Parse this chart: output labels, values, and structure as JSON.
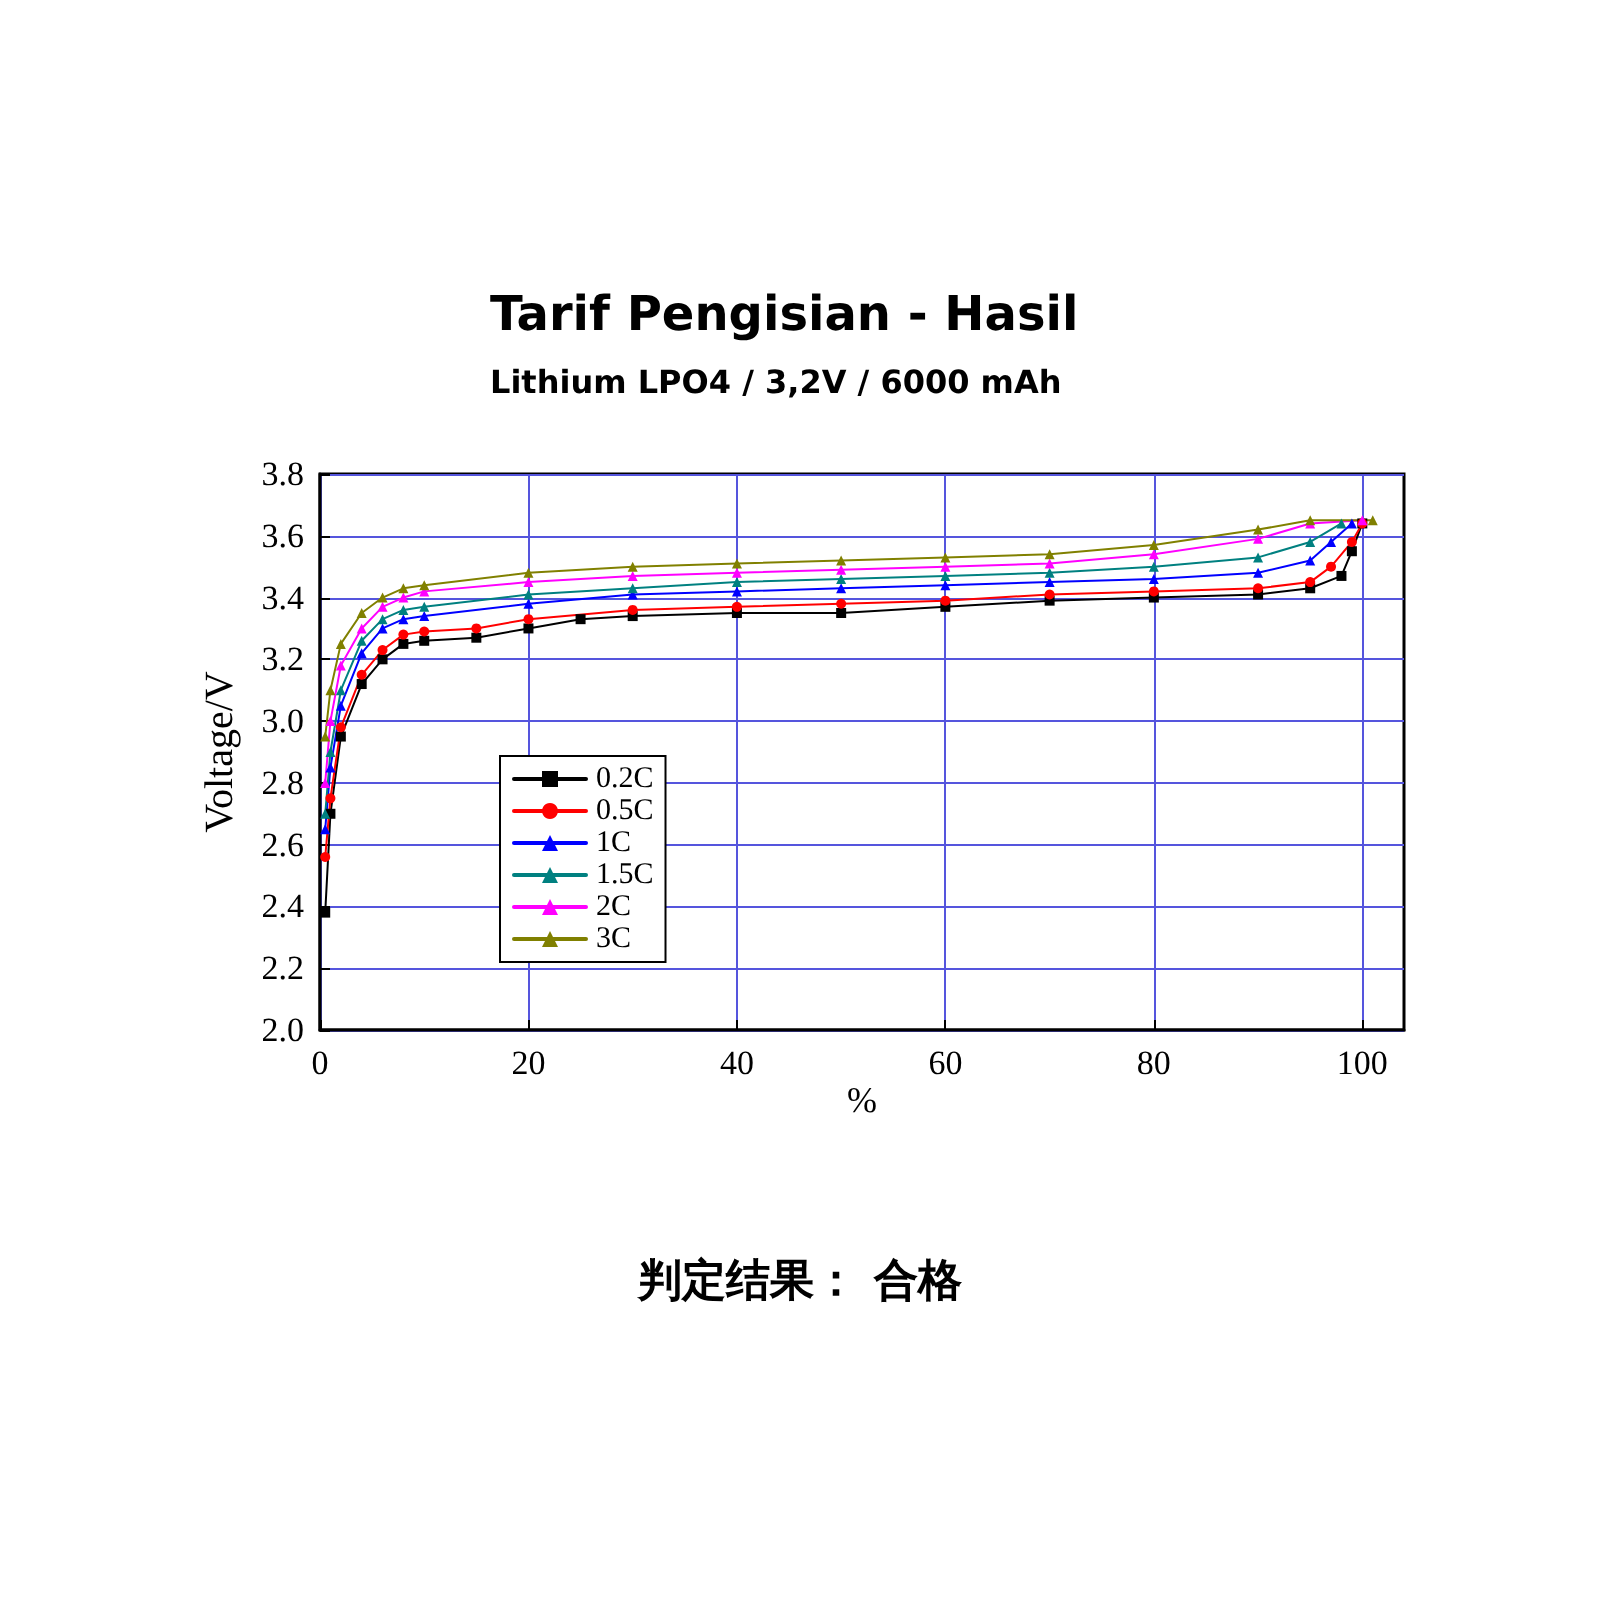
{
  "chart_data": {
    "type": "line",
    "title": "Tarif Pengisian - Hasil",
    "subtitle": "Lithium LPO4 / 3,2V / 6000 mAh",
    "xlabel": "%",
    "ylabel": "Voltage/V",
    "annotations": [
      "判定结果： 合格"
    ],
    "xlim": [
      0,
      104
    ],
    "xticks": [
      0,
      20,
      40,
      60,
      80,
      100
    ],
    "ylim": [
      2.0,
      3.8
    ],
    "yticks": [
      {
        "value": 2.0,
        "label": "2.0"
      },
      2.2,
      2.4,
      2.6,
      2.8,
      {
        "value": 3.0,
        "label": "3.0"
      },
      3.2,
      3.4,
      3.6,
      3.8
    ],
    "grid": true,
    "legend": "left",
    "line_style": "solid",
    "series": [
      {
        "name": "0.2C",
        "color": "#000000",
        "marker": "square",
        "x": [
          0.5,
          1,
          2,
          4,
          6,
          8,
          10,
          15,
          20,
          25,
          30,
          40,
          50,
          60,
          70,
          80,
          90,
          95,
          98,
          99,
          100
        ],
        "values": [
          2.38,
          2.7,
          2.95,
          3.12,
          3.2,
          3.25,
          3.26,
          3.27,
          3.3,
          3.33,
          3.34,
          3.35,
          3.35,
          3.37,
          3.39,
          3.4,
          3.41,
          3.43,
          3.47,
          3.55,
          3.64
        ]
      },
      {
        "name": "0.5C",
        "color": "#ff0000",
        "marker": "circle",
        "x": [
          0.5,
          1,
          2,
          4,
          6,
          8,
          10,
          15,
          20,
          30,
          40,
          50,
          60,
          70,
          80,
          90,
          95,
          97,
          99,
          100
        ],
        "values": [
          2.56,
          2.75,
          2.98,
          3.15,
          3.23,
          3.28,
          3.29,
          3.3,
          3.33,
          3.36,
          3.37,
          3.38,
          3.39,
          3.41,
          3.42,
          3.43,
          3.45,
          3.5,
          3.58,
          3.64
        ]
      },
      {
        "name": "1C",
        "color": "#0000ff",
        "marker": "triangle",
        "x": [
          0.5,
          1,
          2,
          4,
          6,
          8,
          10,
          20,
          30,
          40,
          50,
          60,
          70,
          80,
          90,
          95,
          97,
          99
        ],
        "values": [
          2.65,
          2.85,
          3.05,
          3.22,
          3.3,
          3.33,
          3.34,
          3.38,
          3.41,
          3.42,
          3.43,
          3.44,
          3.45,
          3.46,
          3.48,
          3.52,
          3.58,
          3.64
        ]
      },
      {
        "name": "1.5C",
        "color": "#008080",
        "marker": "triangle",
        "x": [
          0.5,
          1,
          2,
          4,
          6,
          8,
          10,
          20,
          30,
          40,
          50,
          60,
          70,
          80,
          90,
          95,
          98
        ],
        "values": [
          2.7,
          2.9,
          3.1,
          3.26,
          3.33,
          3.36,
          3.37,
          3.41,
          3.43,
          3.45,
          3.46,
          3.47,
          3.48,
          3.5,
          3.53,
          3.58,
          3.64
        ]
      },
      {
        "name": "2C",
        "color": "#ff00ff",
        "marker": "triangle",
        "x": [
          0.5,
          1,
          2,
          4,
          6,
          8,
          10,
          20,
          30,
          40,
          50,
          60,
          70,
          80,
          90,
          95,
          100
        ],
        "values": [
          2.8,
          3.0,
          3.18,
          3.3,
          3.37,
          3.4,
          3.42,
          3.45,
          3.47,
          3.48,
          3.49,
          3.5,
          3.51,
          3.54,
          3.59,
          3.64,
          3.65
        ]
      },
      {
        "name": "3C",
        "color": "#808000",
        "marker": "triangle",
        "x": [
          0.5,
          1,
          2,
          4,
          6,
          8,
          10,
          20,
          30,
          40,
          50,
          60,
          70,
          80,
          90,
          95,
          101
        ],
        "values": [
          2.95,
          3.1,
          3.25,
          3.35,
          3.4,
          3.43,
          3.44,
          3.48,
          3.5,
          3.51,
          3.52,
          3.53,
          3.54,
          3.57,
          3.62,
          3.65,
          3.65
        ]
      }
    ]
  }
}
